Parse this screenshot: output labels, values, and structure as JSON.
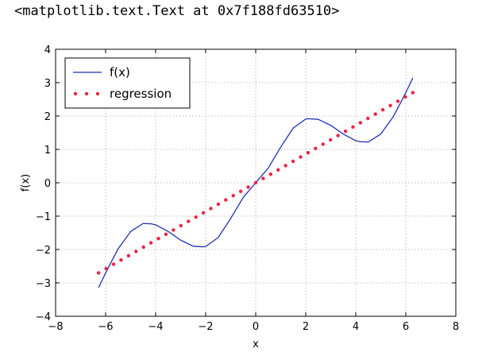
{
  "output_text": "<matplotlib.text.Text at 0x7f188fd63510>",
  "chart_data": {
    "type": "line",
    "title": "",
    "xlabel": "x",
    "ylabel": "f(x)",
    "xlim": [
      -8,
      8
    ],
    "ylim": [
      -4,
      4
    ],
    "xticks": [
      -8,
      -6,
      -4,
      -2,
      0,
      2,
      4,
      6,
      8
    ],
    "yticks": [
      -4,
      -3,
      -2,
      -1,
      0,
      1,
      2,
      3,
      4
    ],
    "xtick_labels": [
      "−8",
      "−6",
      "−4",
      "−2",
      "0",
      "2",
      "4",
      "6",
      "8"
    ],
    "ytick_labels": [
      "−4",
      "−3",
      "−2",
      "−1",
      "0",
      "1",
      "2",
      "3",
      "4"
    ],
    "grid": true,
    "legend_placement": "top-left",
    "series": [
      {
        "name": "f(x)",
        "style": "line",
        "color": "#1f30b4",
        "x": [
          -6.28,
          -6.0,
          -5.5,
          -5.0,
          -4.5,
          -4.19,
          -4.0,
          -3.5,
          -3.0,
          -2.5,
          -2.09,
          -2.0,
          -1.5,
          -1.0,
          -0.5,
          0.0,
          0.5,
          1.0,
          1.5,
          2.0,
          2.09,
          2.5,
          3.0,
          3.5,
          4.0,
          4.19,
          4.5,
          5.0,
          5.5,
          6.0,
          6.28
        ],
        "y": [
          -3.14,
          -2.7,
          -1.98,
          -1.46,
          -1.22,
          -1.23,
          -1.26,
          -1.46,
          -1.72,
          -1.9,
          -1.92,
          -1.91,
          -1.64,
          -1.07,
          -0.44,
          0.0,
          0.44,
          1.07,
          1.64,
          1.91,
          1.92,
          1.9,
          1.72,
          1.46,
          1.26,
          1.23,
          1.22,
          1.46,
          1.98,
          2.7,
          3.14
        ]
      },
      {
        "name": "regression",
        "style": "dotted",
        "color": "#ee2244",
        "x": [
          -6.28,
          6.28
        ],
        "y": [
          -2.7,
          2.7
        ]
      }
    ]
  }
}
